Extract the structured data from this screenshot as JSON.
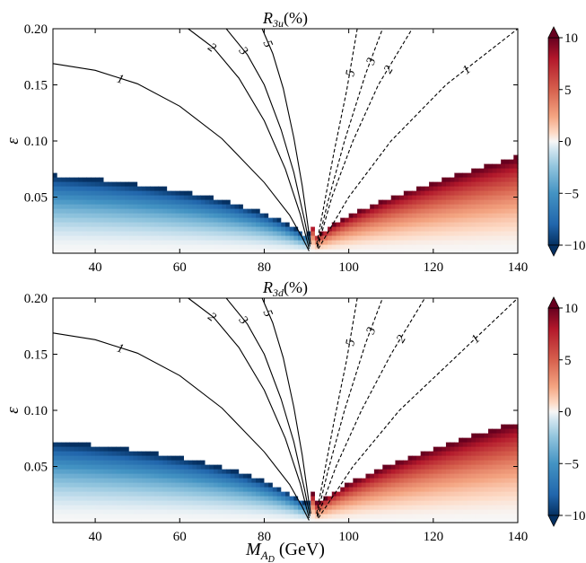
{
  "chart_data": [
    {
      "type": "heatmap",
      "panel": "upper",
      "title_main": "R",
      "title_sub": "3u",
      "title_suffix": "(%)",
      "ylabel": "ε",
      "xlim": [
        30,
        140
      ],
      "ylim": [
        0,
        0.2
      ],
      "xticks": [
        40,
        60,
        80,
        100,
        120,
        140
      ],
      "yticks": [
        0.05,
        0.1,
        0.15,
        0.2
      ],
      "colorbar": {
        "range": [
          -10,
          10
        ],
        "ticks": [
          -10,
          -5,
          0,
          5,
          10
        ],
        "colormap": "RdBu_r",
        "extend": "both"
      },
      "contours": [
        {
          "level": 1,
          "label": "1",
          "side": "left",
          "points": [
            [
              30,
              0.169
            ],
            [
              40,
              0.163
            ],
            [
              50,
              0.151
            ],
            [
              60,
              0.131
            ],
            [
              70,
              0.102
            ],
            [
              80,
              0.063
            ],
            [
              86,
              0.034
            ],
            [
              89,
              0.014
            ],
            [
              90.6,
              0.002
            ]
          ]
        },
        {
          "level": 2,
          "label": "2",
          "side": "left",
          "points": [
            [
              62,
              0.2
            ],
            [
              68,
              0.183
            ],
            [
              74,
              0.156
            ],
            [
              80,
              0.118
            ],
            [
              85,
              0.075
            ],
            [
              88.5,
              0.035
            ],
            [
              90.6,
              0.004
            ]
          ]
        },
        {
          "level": 3,
          "label": "3",
          "side": "left",
          "points": [
            [
              71,
              0.2
            ],
            [
              76,
              0.177
            ],
            [
              80,
              0.15
            ],
            [
              84,
              0.11
            ],
            [
              87,
              0.072
            ],
            [
              89.5,
              0.03
            ],
            [
              90.8,
              0.006
            ]
          ]
        },
        {
          "level": 5,
          "label": "5",
          "side": "left",
          "points": [
            [
              79.5,
              0.2
            ],
            [
              82,
              0.178
            ],
            [
              84.5,
              0.147
            ],
            [
              87,
              0.103
            ],
            [
              89,
              0.06
            ],
            [
              90.5,
              0.02
            ],
            [
              91,
              0.008
            ]
          ]
        },
        {
          "level": -5,
          "label": "5",
          "side": "right",
          "points": [
            [
              92.4,
              0.008
            ],
            [
              94,
              0.04
            ],
            [
              96.5,
              0.09
            ],
            [
              99.5,
              0.145
            ],
            [
              102,
              0.2
            ]
          ]
        },
        {
          "level": -3,
          "label": "3",
          "side": "right",
          "points": [
            [
              92.5,
              0.006
            ],
            [
              95,
              0.045
            ],
            [
              99,
              0.1
            ],
            [
              104,
              0.16
            ],
            [
              108,
              0.2
            ]
          ]
        },
        {
          "level": -2,
          "label": "2",
          "side": "right",
          "points": [
            [
              92.6,
              0.005
            ],
            [
              96,
              0.05
            ],
            [
              101,
              0.1
            ],
            [
              107,
              0.15
            ],
            [
              115,
              0.2
            ]
          ]
        },
        {
          "level": -1,
          "label": "1",
          "side": "right",
          "points": [
            [
              92.8,
              0.004
            ],
            [
              100,
              0.05
            ],
            [
              110,
              0.1
            ],
            [
              123,
              0.15
            ],
            [
              140,
              0.2
            ]
          ]
        }
      ]
    },
    {
      "type": "heatmap",
      "panel": "lower",
      "title_main": "R",
      "title_sub": "3d",
      "title_suffix": "(%)",
      "ylabel": "ε",
      "xlabel_main": "M",
      "xlabel_sub": "A",
      "xlabel_subsub": "D",
      "xlabel_suffix": " (GeV)",
      "xlim": [
        30,
        140
      ],
      "ylim": [
        0,
        0.2
      ],
      "xticks": [
        40,
        60,
        80,
        100,
        120,
        140
      ],
      "yticks": [
        0.05,
        0.1,
        0.15,
        0.2
      ],
      "colorbar": {
        "range": [
          -10,
          10
        ],
        "ticks": [
          -10,
          -5,
          0,
          5,
          10
        ],
        "colormap": "RdBu_r",
        "extend": "both"
      },
      "contours": [
        {
          "level": 1,
          "label": "1",
          "side": "left",
          "points": [
            [
              30,
              0.169
            ],
            [
              40,
              0.163
            ],
            [
              50,
              0.151
            ],
            [
              60,
              0.131
            ],
            [
              70,
              0.102
            ],
            [
              80,
              0.063
            ],
            [
              86,
              0.034
            ],
            [
              89,
              0.014
            ],
            [
              90.6,
              0.002
            ]
          ]
        },
        {
          "level": 2,
          "label": "2",
          "side": "left",
          "points": [
            [
              62,
              0.2
            ],
            [
              68,
              0.183
            ],
            [
              74,
              0.156
            ],
            [
              80,
              0.118
            ],
            [
              85,
              0.075
            ],
            [
              88.5,
              0.035
            ],
            [
              90.6,
              0.004
            ]
          ]
        },
        {
          "level": 3,
          "label": "3",
          "side": "left",
          "points": [
            [
              71,
              0.2
            ],
            [
              76,
              0.177
            ],
            [
              80,
              0.15
            ],
            [
              84,
              0.11
            ],
            [
              87,
              0.072
            ],
            [
              89.5,
              0.03
            ],
            [
              90.8,
              0.006
            ]
          ]
        },
        {
          "level": 5,
          "label": "5",
          "side": "left",
          "points": [
            [
              79.5,
              0.2
            ],
            [
              82,
              0.178
            ],
            [
              84.5,
              0.147
            ],
            [
              87,
              0.103
            ],
            [
              89,
              0.06
            ],
            [
              90.5,
              0.02
            ],
            [
              91,
              0.008
            ]
          ]
        },
        {
          "level": -5,
          "label": "5",
          "side": "right",
          "points": [
            [
              92.4,
              0.008
            ],
            [
              94,
              0.04
            ],
            [
              96.5,
              0.09
            ],
            [
              99.5,
              0.145
            ],
            [
              102,
              0.2
            ]
          ]
        },
        {
          "level": -3,
          "label": "3",
          "side": "right",
          "points": [
            [
              92.5,
              0.006
            ],
            [
              95,
              0.045
            ],
            [
              99,
              0.1
            ],
            [
              104,
              0.16
            ],
            [
              108,
              0.2
            ]
          ]
        },
        {
          "level": -2,
          "label": "2",
          "side": "right",
          "points": [
            [
              92.6,
              0.005
            ],
            [
              97,
              0.05
            ],
            [
              103,
              0.1
            ],
            [
              110,
              0.15
            ],
            [
              118,
              0.2
            ]
          ]
        },
        {
          "level": -1,
          "label": "1",
          "side": "right",
          "points": [
            [
              92.8,
              0.004
            ],
            [
              101,
              0.05
            ],
            [
              112,
              0.1
            ],
            [
              126,
              0.15
            ],
            [
              140,
              0.2
            ]
          ]
        }
      ]
    }
  ]
}
